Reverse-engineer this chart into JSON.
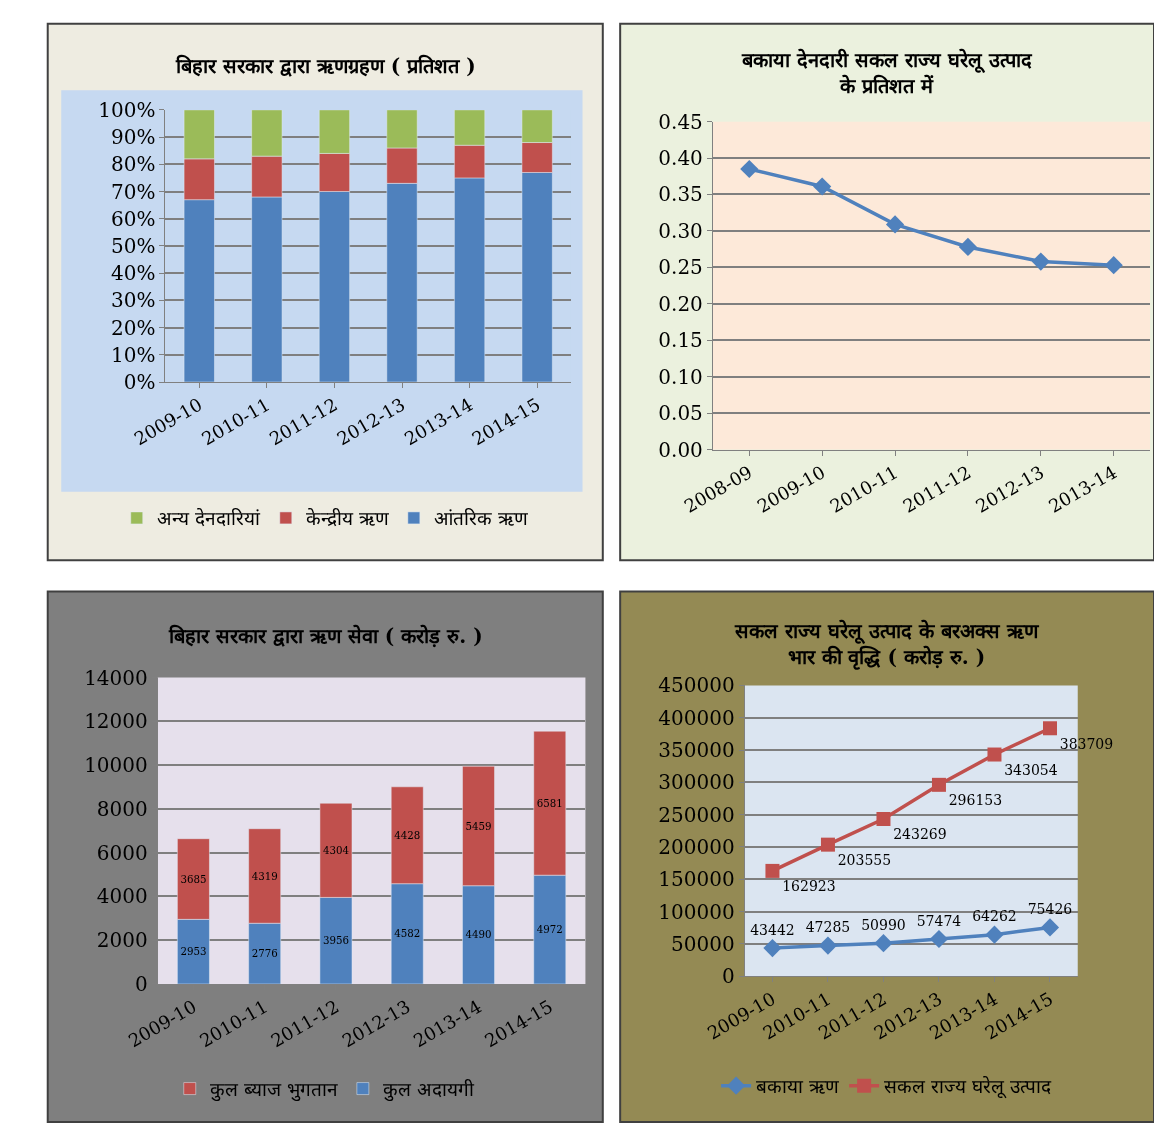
{
  "chart_data": [
    {
      "type": "bar",
      "title": "बिहार सरकार द्वारा ऋणग्रहण ( प्रतिशत )",
      "stacked": true,
      "categories": [
        "2009-10",
        "2010-11",
        "2011-12",
        "2012-13",
        "2013-14",
        "2014-15"
      ],
      "series": [
        {
          "name": "आंतरिक ऋण",
          "color": "#4f81bd",
          "values": [
            67,
            68,
            70,
            73,
            75,
            77
          ]
        },
        {
          "name": "केन्द्रीय ऋण",
          "color": "#c0504d",
          "values": [
            15,
            15,
            14,
            13,
            12,
            11
          ]
        },
        {
          "name": "अन्य देनदारियां",
          "color": "#9bbb59",
          "values": [
            18,
            17,
            16,
            14,
            13,
            12
          ]
        }
      ],
      "ylim": [
        0,
        100
      ],
      "yticks": [
        {
          "value": 0,
          "label": "0%"
        },
        {
          "value": 10,
          "label": "10%"
        },
        {
          "value": 20,
          "label": "20%"
        },
        {
          "value": 30,
          "label": "30%"
        },
        {
          "value": 40,
          "label": "40%"
        },
        {
          "value": 50,
          "label": "50%"
        },
        {
          "value": 60,
          "label": "60%"
        },
        {
          "value": 70,
          "label": "70%"
        },
        {
          "value": 80,
          "label": "80%"
        },
        {
          "value": 90,
          "label": "90%"
        },
        {
          "value": 100,
          "label": "100%"
        }
      ],
      "grid": "y",
      "legend": "bottom"
    },
    {
      "type": "line",
      "title": "बकाया देनदारी सकल राज्य घरेलू उत्पाद\nके प्रतिशत में",
      "categories": [
        "2008-09",
        "2009-10",
        "2010-11",
        "2011-12",
        "2012-13",
        "2013-14"
      ],
      "series": [
        {
          "color": "#4f81bd",
          "values": [
            0.385,
            0.361,
            0.309,
            0.278,
            0.258,
            0.253
          ]
        }
      ],
      "ylim": [
        0,
        0.45
      ],
      "yticks": [
        {
          "value": 0,
          "label": "0.00"
        },
        {
          "value": 0.05,
          "label": "0.05"
        },
        {
          "value": 0.1,
          "label": "0.10"
        },
        {
          "value": 0.15,
          "label": "0.15"
        },
        {
          "value": 0.2,
          "label": "0.20"
        },
        {
          "value": 0.25,
          "label": "0.25"
        },
        {
          "value": 0.3,
          "label": "0.30"
        },
        {
          "value": 0.35,
          "label": "0.35"
        },
        {
          "value": 0.4,
          "label": "0.40"
        },
        {
          "value": 0.45,
          "label": "0.45"
        }
      ],
      "grid": "y",
      "marker": "diamond"
    },
    {
      "type": "bar",
      "title": "बिहार सरकार द्वारा ऋण सेवा ( करोड़ रु. )",
      "stacked": true,
      "categories": [
        "2009-10",
        "2010-11",
        "2011-12",
        "2012-13",
        "2013-14",
        "2014-15"
      ],
      "series": [
        {
          "name": "कुल अदायगी",
          "color": "#4f81bd",
          "values": [
            2953,
            2776,
            3956,
            4582,
            4490,
            4972
          ]
        },
        {
          "name": "कुल ब्याज भुगतान",
          "color": "#c0504d",
          "values": [
            3685,
            4319,
            4304,
            4428,
            5459,
            6581
          ]
        }
      ],
      "ylim": [
        0,
        14000
      ],
      "yticks": [
        0,
        2000,
        4000,
        6000,
        8000,
        10000,
        12000,
        14000
      ],
      "grid": "y",
      "legend": "bottom",
      "data_labels": true
    },
    {
      "type": "line",
      "title": "सकल राज्य घरेलू उत्पाद के बरअक्स ऋण\nभार की वृद्धि ( करोड़ रु. )",
      "categories": [
        "2009-10",
        "2010-11",
        "2011-12",
        "2012-13",
        "2013-14",
        "2014-15"
      ],
      "series": [
        {
          "name": "बकाया ऋण",
          "color": "#4f81bd",
          "marker": "diamond",
          "values": [
            43442,
            47285,
            50990,
            57474,
            64262,
            75426
          ]
        },
        {
          "name": "सकल राज्य घरेलू उत्पाद",
          "color": "#c0504d",
          "marker": "square",
          "values": [
            162923,
            203555,
            243269,
            296153,
            343054,
            383709
          ]
        }
      ],
      "ylim": [
        0,
        450000
      ],
      "yticks": [
        0,
        50000,
        100000,
        150000,
        200000,
        250000,
        300000,
        350000,
        400000,
        450000
      ],
      "grid": "y",
      "legend": "bottom",
      "data_labels": true
    }
  ]
}
